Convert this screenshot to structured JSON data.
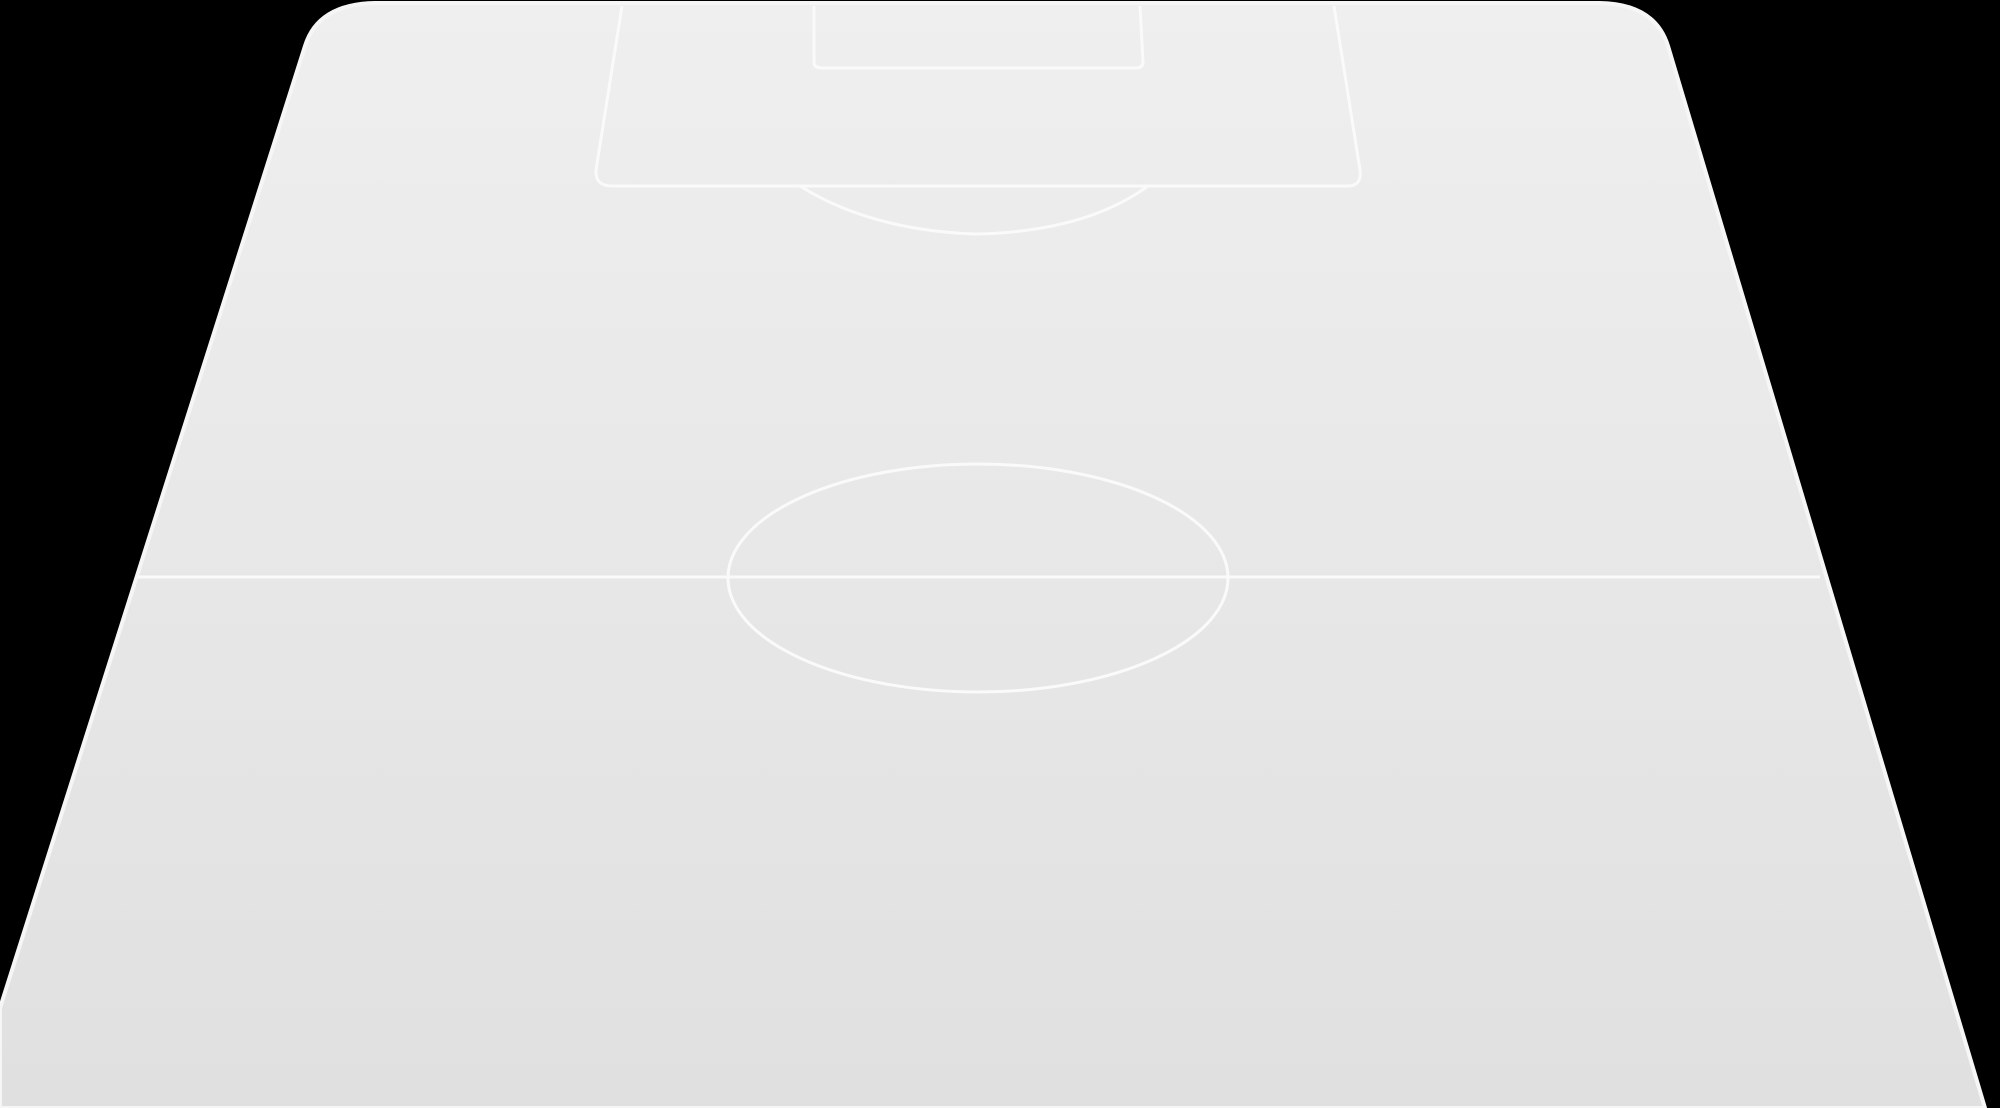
{
  "colors": {
    "background": "#000000",
    "pitch_top": "#efefef",
    "pitch_bottom": "#e0e0e0",
    "pitch_edge": "#f6f6f6",
    "line": "#fafafa"
  },
  "pitch": {
    "view": "perspective-half-pitch",
    "markings": [
      "touchline",
      "goal-line",
      "penalty-area",
      "goal-area",
      "penalty-arc",
      "halfway-line",
      "center-circle"
    ]
  }
}
